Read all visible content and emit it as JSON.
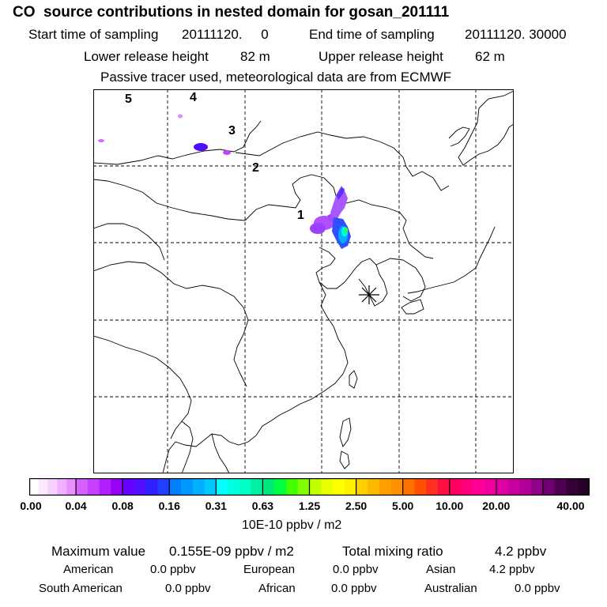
{
  "header": {
    "title": "CO  source contributions in nested domain for gosan_201111",
    "start_label": "Start time of sampling",
    "start_value": "20111120.     0",
    "end_label": "End time of sampling",
    "end_value": "20111120. 30000",
    "lower_label": "Lower release height",
    "lower_value": "82 m",
    "upper_label": "Upper release height",
    "upper_value": "62 m",
    "tracer_note": "Passive tracer used, meteorological data are from ECMWF"
  },
  "map": {
    "region_labels": [
      "1",
      "2",
      "3",
      "4",
      "5"
    ],
    "receptor_marker": "asterisk-icon",
    "plume_colors": [
      "#b050ff",
      "#8000ff",
      "#3030ff",
      "#00c0ff",
      "#00ffcc",
      "#40ff40"
    ]
  },
  "colorbar": {
    "ticks": [
      "0.00",
      "0.04",
      "0.08",
      "0.16",
      "0.31",
      "0.63",
      "1.25",
      "2.50",
      "5.00",
      "10.00",
      "20.00",
      "40.00"
    ],
    "unit_label": "10E-10 ppbv / m2",
    "groups": [
      [
        "#ffffff",
        "#fce8ff",
        "#f8d0ff",
        "#f0b0ff",
        "#e890ff"
      ],
      [
        "#d860ff",
        "#c840ff",
        "#b020ff",
        "#9800f8"
      ],
      [
        "#6800ff",
        "#5010ff",
        "#3020ff",
        "#2040ff"
      ],
      [
        "#0080ff",
        "#0098ff",
        "#00b0ff",
        "#00c8ff"
      ],
      [
        "#00ffff",
        "#00ffe0",
        "#00ffc8",
        "#00f0a0"
      ],
      [
        "#00e878",
        "#00ff40",
        "#40ff00",
        "#80ff00"
      ],
      [
        "#c0ff00",
        "#e8ff00",
        "#ffff00",
        "#fff000"
      ],
      [
        "#ffd000",
        "#ffb800",
        "#ffa000",
        "#ff9000"
      ],
      [
        "#ff7000",
        "#ff5000",
        "#ff3020",
        "#ff1040"
      ],
      [
        "#ff0060",
        "#ff0080",
        "#ff0098",
        "#f000a0"
      ],
      [
        "#e000a8",
        "#c800a0",
        "#b00098",
        "#900088"
      ],
      [
        "#700070",
        "#500050",
        "#380038",
        "#280028"
      ]
    ]
  },
  "summary": {
    "max_label": "Maximum value",
    "max_value": "0.155E-09 ppbv / m2",
    "total_label": "Total mixing ratio",
    "total_value": "4.2 ppbv",
    "regions": [
      {
        "name": "American",
        "value": "0.0 ppbv"
      },
      {
        "name": "European",
        "value": "0.0 ppbv"
      },
      {
        "name": "Asian",
        "value": "4.2 ppbv"
      },
      {
        "name": "South American",
        "value": "0.0 ppbv"
      },
      {
        "name": "African",
        "value": "0.0 ppbv"
      },
      {
        "name": "Australian",
        "value": "0.0 ppbv"
      }
    ]
  }
}
